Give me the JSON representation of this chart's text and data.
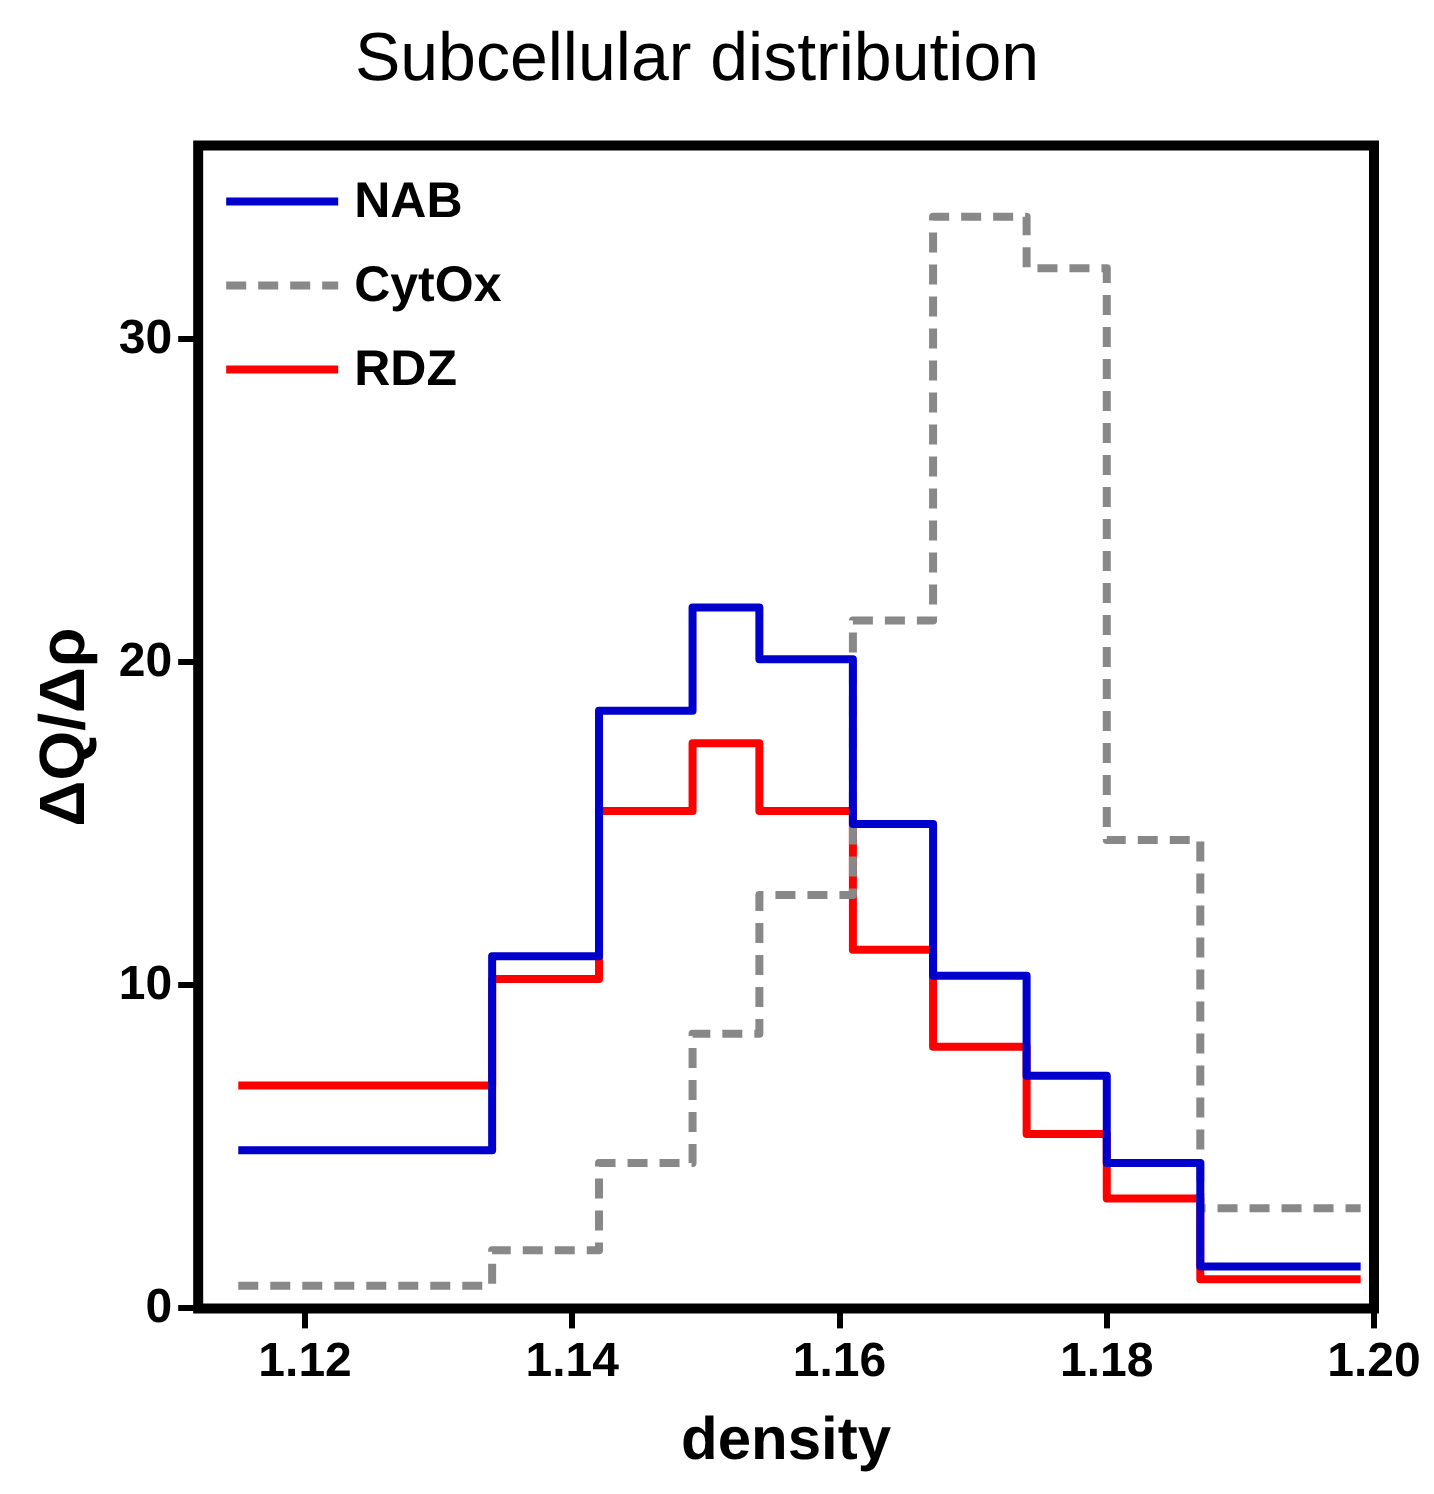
{
  "chart_data": {
    "type": "histogram",
    "title": "Subcellular distribution",
    "xlabel": "density",
    "ylabel": "ΔQ/Δρ",
    "bins": [
      1.115,
      1.134,
      1.142,
      1.149,
      1.154,
      1.161,
      1.167,
      1.174,
      1.18,
      1.187,
      1.199
    ],
    "series": [
      {
        "name": "NAB",
        "color": "#0000cc",
        "line_style": "solid",
        "values": [
          4.9,
          10.9,
          18.5,
          21.7,
          20.1,
          15.0,
          10.3,
          7.2,
          4.5,
          1.3
        ]
      },
      {
        "name": "CytOx",
        "color": "#888888",
        "line_style": "dashed",
        "values": [
          0.7,
          1.8,
          4.5,
          8.5,
          12.8,
          21.3,
          33.8,
          32.2,
          14.5,
          3.1
        ]
      },
      {
        "name": "RDZ",
        "color": "#ff0000",
        "line_style": "solid",
        "values": [
          6.9,
          10.2,
          15.4,
          17.5,
          15.4,
          11.1,
          8.1,
          5.4,
          3.4,
          0.9
        ]
      }
    ],
    "xlim": [
      1.112,
      1.2
    ],
    "xticks": [
      1.12,
      1.14,
      1.16,
      1.18,
      {
        "value": 1.2,
        "label": "1.20"
      }
    ],
    "ylim": [
      0,
      36
    ],
    "yticks": [
      0,
      10,
      20,
      30
    ],
    "grid": false,
    "legend": "top left"
  }
}
